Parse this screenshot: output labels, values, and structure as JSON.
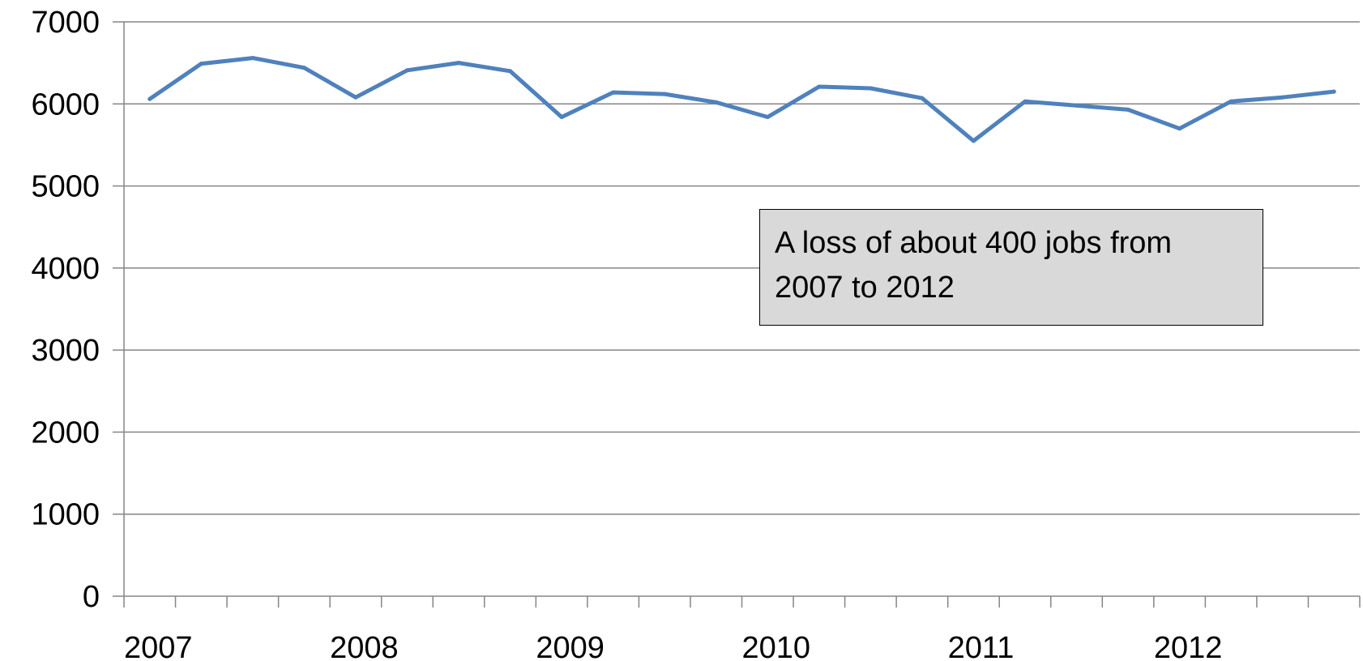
{
  "chart_data": {
    "type": "line",
    "title": "",
    "xlabel": "",
    "ylabel": "",
    "ylim": [
      0,
      7000
    ],
    "yticks": [
      "0",
      "1000",
      "2000",
      "3000",
      "4000",
      "5000",
      "6000",
      "7000"
    ],
    "xtick_labels": [
      "2007",
      "2008",
      "2009",
      "2010",
      "2011",
      "2012"
    ],
    "grid": true,
    "series_color": "#4f81bd",
    "series": [
      {
        "values": [
          6060,
          6490,
          6560,
          6440,
          6080,
          6410,
          6500,
          6400,
          5840,
          6140,
          6120,
          6020,
          5840,
          6210,
          6190,
          6070,
          5550,
          6030,
          5980,
          5930,
          5700,
          6030,
          6080,
          6150
        ]
      }
    ],
    "annotation": "A loss of about 400 jobs from 2007 to 2012"
  }
}
